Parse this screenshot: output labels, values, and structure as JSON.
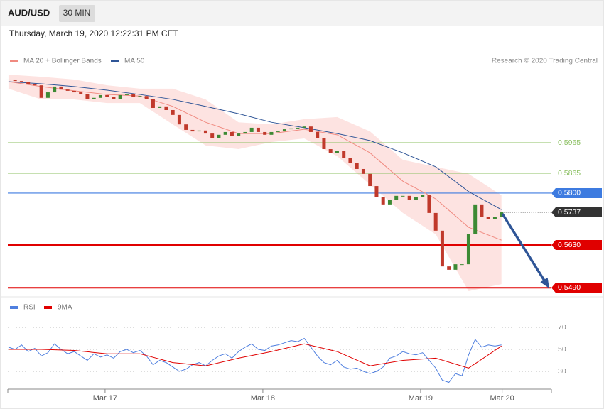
{
  "header": {
    "symbol": "AUD/USD",
    "interval": "30 MIN",
    "timestamp": "Thursday, March 19, 2020 12:22:31 PM CET"
  },
  "chart_data": [
    {
      "type": "candlestick",
      "source": "Research © 2020 Trading Central",
      "up_color": "#3d8a34",
      "down_color": "#c0392b",
      "x": [
        0,
        1,
        2,
        3,
        4,
        5,
        6,
        7,
        8,
        9,
        10,
        11,
        12,
        13,
        14,
        15,
        16,
        17,
        18,
        19,
        20,
        21,
        22,
        23,
        24,
        25,
        26,
        27,
        28,
        29,
        30,
        31,
        32,
        33,
        34,
        35,
        36,
        37,
        38,
        39,
        40,
        41,
        42,
        43,
        44,
        45,
        46,
        47,
        48,
        49,
        50,
        51,
        52,
        53,
        54,
        55,
        56,
        57,
        58,
        59,
        60,
        61,
        62,
        63,
        64,
        65,
        66,
        67,
        68,
        69,
        70,
        71,
        72,
        73,
        74,
        75
      ],
      "close": [
        0.6172,
        0.6167,
        0.6163,
        0.6158,
        0.6153,
        0.6112,
        0.613,
        0.6149,
        0.6139,
        0.6135,
        0.613,
        0.6125,
        0.6107,
        0.6112,
        0.6121,
        0.6116,
        0.6107,
        0.6121,
        0.6125,
        0.6116,
        0.6118,
        0.6107,
        0.6079,
        0.6084,
        0.6072,
        0.6056,
        0.6025,
        0.6007,
        0.6002,
        0.6005,
        0.5995,
        0.5979,
        0.5991,
        0.6,
        0.5986,
        0.5995,
        0.6,
        0.6014,
        0.6,
        0.5991,
        0.6,
        0.6002,
        0.6009,
        0.6012,
        0.6014,
        0.6018,
        0.6,
        0.5979,
        0.5944,
        0.5932,
        0.5939,
        0.5916,
        0.5898,
        0.5879,
        0.5863,
        0.5823,
        0.5786,
        0.5763,
        0.5777,
        0.5791,
        0.5791,
        0.5777,
        0.5786,
        0.5793,
        0.5735,
        0.5677,
        0.556,
        0.5549,
        0.5567,
        0.5567,
        0.5665,
        0.5763,
        0.5723,
        0.5716,
        0.5721,
        0.5737
      ],
      "series": [
        {
          "name": "MA 20 + Bollinger Bands",
          "color": "#f08a80",
          "band_color": "#fde3e1",
          "x": [
            0,
            5,
            10,
            15,
            20,
            25,
            30,
            35,
            40,
            45,
            50,
            55,
            60,
            65,
            70,
            75
          ],
          "values": [
            0.6165,
            0.6149,
            0.6135,
            0.6123,
            0.6118,
            0.6084,
            0.6032,
            0.5995,
            0.5995,
            0.6009,
            0.5991,
            0.5932,
            0.5839,
            0.5781,
            0.5688,
            0.5646
          ],
          "upper": [
            0.6188,
            0.6181,
            0.6172,
            0.6153,
            0.6142,
            0.6142,
            0.6107,
            0.6032,
            0.6025,
            0.6042,
            0.6049,
            0.6002,
            0.5909,
            0.5886,
            0.5863,
            0.5793
          ],
          "lower": [
            0.6142,
            0.6107,
            0.6107,
            0.6095,
            0.6095,
            0.6025,
            0.5956,
            0.5944,
            0.5967,
            0.5979,
            0.5921,
            0.5828,
            0.5735,
            0.5665,
            0.5479,
            0.5502
          ]
        },
        {
          "name": "MA 50",
          "color": "#2f5597",
          "x": [
            0,
            5,
            10,
            15,
            20,
            25,
            30,
            35,
            40,
            45,
            50,
            55,
            60,
            65,
            70,
            75
          ],
          "values": [
            0.6165,
            0.6158,
            0.6149,
            0.6137,
            0.6123,
            0.6107,
            0.6084,
            0.606,
            0.6032,
            0.6014,
            0.5995,
            0.5972,
            0.5932,
            0.5886,
            0.5805,
            0.5746
          ]
        }
      ],
      "levels": [
        {
          "value": 0.5965,
          "label": "0.5965",
          "color": "#8cc063",
          "kind": "line"
        },
        {
          "value": 0.5865,
          "label": "0.5865",
          "color": "#8cc063",
          "kind": "line"
        },
        {
          "value": 0.58,
          "label": "0.5800",
          "color": "#3d7be0",
          "kind": "box"
        },
        {
          "value": 0.5737,
          "label": "0.5737",
          "color": "#333333",
          "kind": "dotted"
        },
        {
          "value": 0.563,
          "label": "0.5630",
          "color": "#e00000",
          "kind": "box"
        },
        {
          "value": 0.549,
          "label": "0.5490",
          "color": "#e00000",
          "kind": "box"
        }
      ],
      "xlim": [
        -0.1,
        82.6
      ],
      "ylim": [
        0.5465,
        0.6215
      ]
    },
    {
      "type": "line",
      "series": [
        {
          "name": "RSI",
          "color": "#4f7fdf",
          "x": [
            0,
            1,
            2,
            3,
            4,
            5,
            6,
            7,
            8,
            9,
            10,
            11,
            12,
            13,
            14,
            15,
            16,
            17,
            18,
            19,
            20,
            21,
            22,
            23,
            24,
            25,
            26,
            27,
            28,
            29,
            30,
            31,
            32,
            33,
            34,
            35,
            36,
            37,
            38,
            39,
            40,
            41,
            42,
            43,
            44,
            45,
            46,
            47,
            48,
            49,
            50,
            51,
            52,
            53,
            54,
            55,
            56,
            57,
            58,
            59,
            60,
            61,
            62,
            63,
            64,
            65,
            66,
            67,
            68,
            69,
            70,
            71,
            72,
            73,
            74,
            75
          ],
          "values": [
            52,
            50,
            54,
            48,
            51,
            44,
            47,
            55,
            50,
            46,
            48,
            44,
            40,
            46,
            43,
            45,
            42,
            48,
            50,
            47,
            49,
            44,
            36,
            40,
            38,
            34,
            30,
            32,
            36,
            38,
            35,
            40,
            44,
            46,
            42,
            48,
            52,
            55,
            50,
            49,
            53,
            54,
            56,
            58,
            57,
            60,
            52,
            44,
            38,
            36,
            40,
            34,
            32,
            33,
            30,
            28,
            30,
            34,
            42,
            44,
            48,
            46,
            45,
            47,
            40,
            33,
            22,
            20,
            28,
            26,
            45,
            59,
            52,
            54,
            53,
            54
          ]
        },
        {
          "name": "9MA",
          "color": "#e00000",
          "x": [
            0,
            5,
            10,
            15,
            20,
            25,
            30,
            35,
            40,
            45,
            50,
            55,
            60,
            65,
            70,
            75
          ],
          "values": [
            50,
            50,
            49,
            46,
            46,
            38,
            35,
            42,
            48,
            55,
            48,
            35,
            40,
            42,
            33,
            53
          ]
        }
      ],
      "xlim": [
        -0.1,
        82.6
      ],
      "ylim": [
        14,
        80
      ],
      "yticks": [
        30,
        50,
        70
      ],
      "xticks": [
        {
          "value": 14.7,
          "label": "Mar 17"
        },
        {
          "value": 38.7,
          "label": "Mar 18"
        },
        {
          "value": 62.7,
          "label": "Mar 19"
        },
        {
          "value": 75.1,
          "label": "Mar 20"
        }
      ]
    }
  ]
}
